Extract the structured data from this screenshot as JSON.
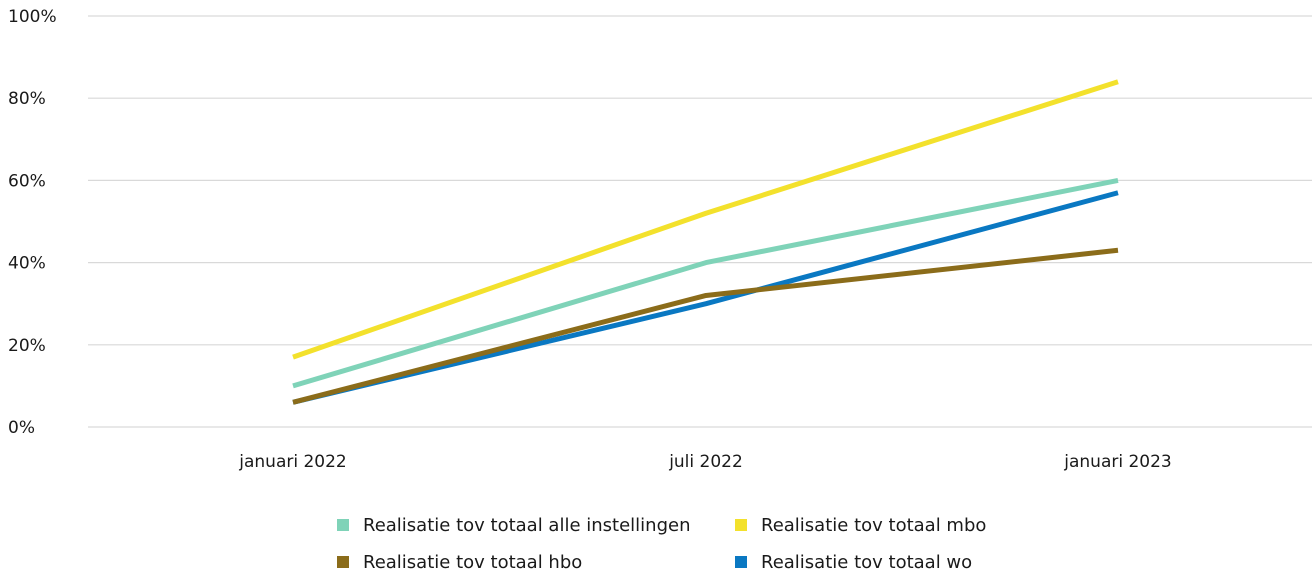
{
  "chart_data": {
    "type": "line",
    "title": "",
    "xlabel": "",
    "ylabel": "",
    "categories": [
      "januari 2022",
      "juli 2022",
      "januari 2023"
    ],
    "ylim": [
      0,
      100
    ],
    "yticks": [
      0,
      20,
      40,
      60,
      80,
      100
    ],
    "ytick_labels": [
      "0%",
      "20%",
      "40%",
      "60%",
      "80%",
      "100%"
    ],
    "grid": "horizontal",
    "legend_position": "bottom",
    "series": [
      {
        "name": "Realisatie tov totaal alle instellingen",
        "color": "#7fd3b8",
        "values": [
          10,
          40,
          60
        ]
      },
      {
        "name": "Realisatie tov totaal mbo",
        "color": "#f3e12c",
        "values": [
          17,
          52,
          84
        ]
      },
      {
        "name": "Realisatie tov totaal hbo",
        "color": "#8b6c1a",
        "values": [
          6,
          32,
          43
        ]
      },
      {
        "name": "Realisatie tov totaal wo",
        "color": "#0a78c2",
        "values": [
          6,
          30,
          57
        ]
      }
    ],
    "draw_order": [
      0,
      1,
      3,
      2
    ]
  }
}
